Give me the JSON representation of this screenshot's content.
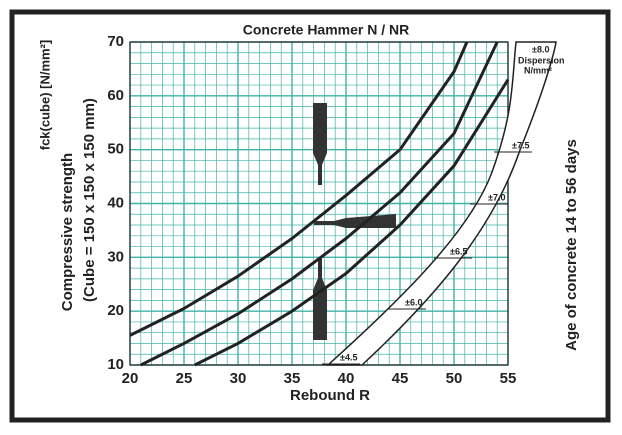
{
  "chart_data": {
    "type": "line",
    "title": "Concrete Hammer N / NR",
    "x_label": "Rebound R",
    "y_label_unit": "fck(cube) [N/mm²]",
    "y_label": "Compressive strength",
    "y_label_note": "(Cube = 150 x 150 x 150 mm)",
    "right_label": "Age of concrete 14 to 56 days",
    "dispersion_title": "Dispersion",
    "dispersion_unit": "N/mm²",
    "dispersion_labels": [
      "±4.5",
      "±6.0",
      "±6.5",
      "±7.0",
      "±7.5",
      "±8.0"
    ],
    "xlim": [
      20,
      55
    ],
    "ylim": [
      10,
      70
    ],
    "xticks": [
      20,
      25,
      30,
      35,
      40,
      45,
      50,
      55
    ],
    "yticks": [
      10,
      20,
      30,
      40,
      50,
      60,
      70
    ],
    "grid": true,
    "grid_color": "#3fb3a6",
    "series": [
      {
        "color": "#222222",
        "x": [
          20,
          25,
          30,
          35,
          40,
          45,
          50,
          51.2
        ],
        "values": [
          15.5,
          20.5,
          26.5,
          33.5,
          41.5,
          50,
          64.5,
          70
        ]
      },
      {
        "color": "#222222",
        "x": [
          21,
          25,
          30,
          35,
          40,
          45,
          50,
          54
        ],
        "values": [
          10,
          14,
          19.5,
          26,
          33.5,
          42,
          53,
          70
        ]
      },
      {
        "color": "#222222",
        "x": [
          26,
          30,
          35,
          40,
          45,
          50,
          55
        ],
        "values": [
          10,
          14,
          20,
          27,
          36,
          47,
          63
        ]
      }
    ]
  }
}
